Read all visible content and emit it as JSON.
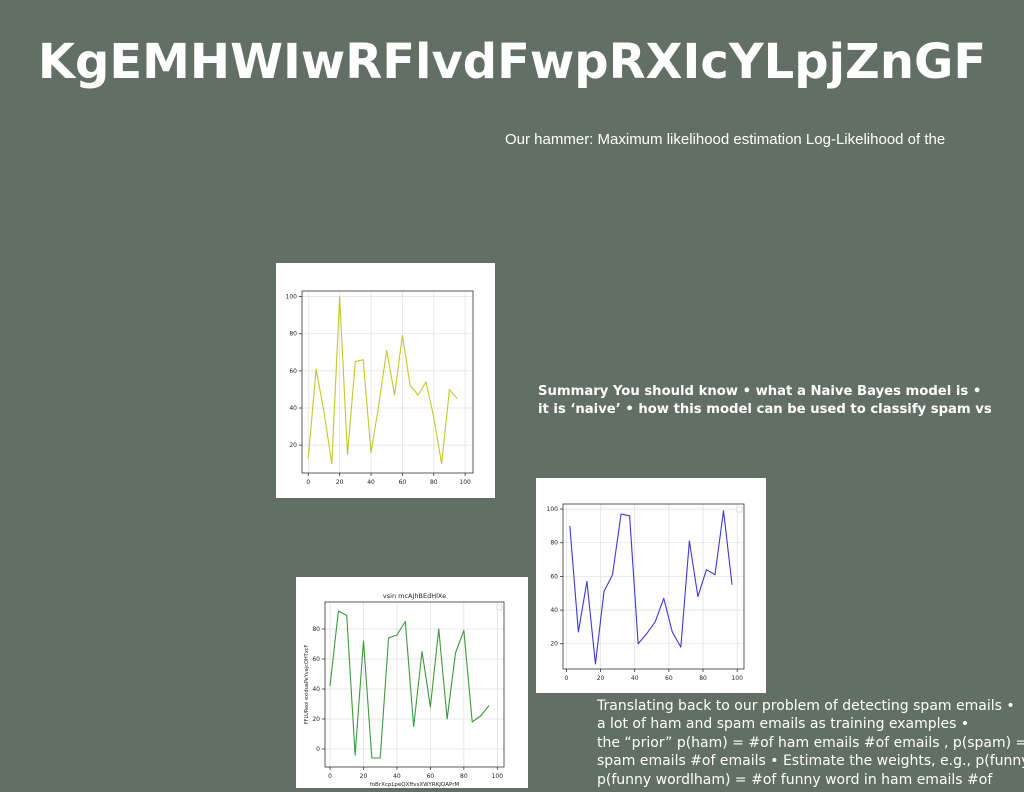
{
  "slide": {
    "title": "KgEMHWIwRFlvdFwpRXIcYLpjZnGF",
    "text_top": "Our hammer: Maximum likelihood estimation Log-Likelihood of the",
    "summary_lines": [
      "Summary You should know • what a Naive Bayes model is •",
      "it is ‘naive’ • how this model can be used to classify spam vs"
    ],
    "bottom_lines": [
      "Translating back to our problem of detecting spam emails •",
      "a lot of ham and spam emails as training examples •",
      "the “prior” p(ham) = #of ham emails #of emails , p(spam) =",
      "spam emails #of emails • Estimate the weights, e.g., p(funny",
      "p(funny wordlham) = #of funny word in ham emails #of"
    ]
  },
  "chart_data": [
    {
      "type": "line",
      "title": "",
      "xlabel": "",
      "ylabel": "",
      "color": "#c8c42a",
      "x": [
        0,
        5,
        10,
        15,
        20,
        25,
        30,
        35,
        40,
        45,
        50,
        55,
        60,
        65,
        70,
        75,
        80,
        85,
        90,
        95,
        100
      ],
      "series": [
        {
          "values": [
            13,
            61,
            38,
            10,
            100,
            15,
            65,
            66,
            16,
            42,
            71,
            47,
            79,
            52,
            47,
            54,
            35,
            10,
            50,
            45,
            null
          ]
        }
      ],
      "xticks": [
        0,
        20,
        40,
        60,
        80,
        100
      ],
      "yticks": [
        20,
        40,
        60,
        80,
        100
      ],
      "xlim": [
        -4,
        105
      ],
      "ylim": [
        5,
        103
      ],
      "grid": true,
      "legend": false
    },
    {
      "type": "line",
      "title": "",
      "xlabel": "",
      "ylabel": "",
      "color": "#3a3ad6",
      "x": [
        2,
        7,
        12,
        17,
        22,
        27,
        32,
        37,
        42,
        47,
        52,
        57,
        62,
        67,
        72,
        77,
        82,
        87,
        92,
        97,
        102
      ],
      "series": [
        {
          "values": [
            90,
            27,
            57,
            8,
            51,
            61,
            97,
            96,
            20,
            26,
            33,
            47,
            27,
            18,
            81,
            48,
            64,
            61,
            99,
            55,
            null
          ]
        }
      ],
      "xticks": [
        0,
        20,
        40,
        60,
        80,
        100
      ],
      "yticks": [
        20,
        40,
        60,
        80,
        100
      ],
      "xlim": [
        -2,
        104
      ],
      "ylim": [
        5,
        103
      ],
      "grid": true,
      "legend": true
    },
    {
      "type": "line",
      "title": "vsin mcAJhBEdHlXe",
      "xlabel": "foBrXcpLpeQXffvsXWYRKJQAPrM",
      "ylabel": "FFLUReoi exiduaPeYvajcOHTxcF",
      "color": "#3b9a3b",
      "x": [
        0,
        5,
        10,
        15,
        20,
        25,
        30,
        35,
        40,
        45,
        50,
        55,
        60,
        65,
        70,
        75,
        80,
        85,
        90,
        95,
        100
      ],
      "series": [
        {
          "values": [
            42,
            92,
            89,
            -4,
            72,
            -6,
            -6,
            74,
            76,
            85,
            15,
            65,
            28,
            80,
            20,
            64,
            79,
            18,
            22,
            29,
            null
          ]
        }
      ],
      "xticks": [
        0,
        20,
        40,
        60,
        80,
        100
      ],
      "yticks": [
        0,
        20,
        40,
        60,
        80
      ],
      "xlim": [
        -3,
        104
      ],
      "ylim": [
        -12,
        98
      ],
      "grid": true,
      "legend": true
    }
  ]
}
